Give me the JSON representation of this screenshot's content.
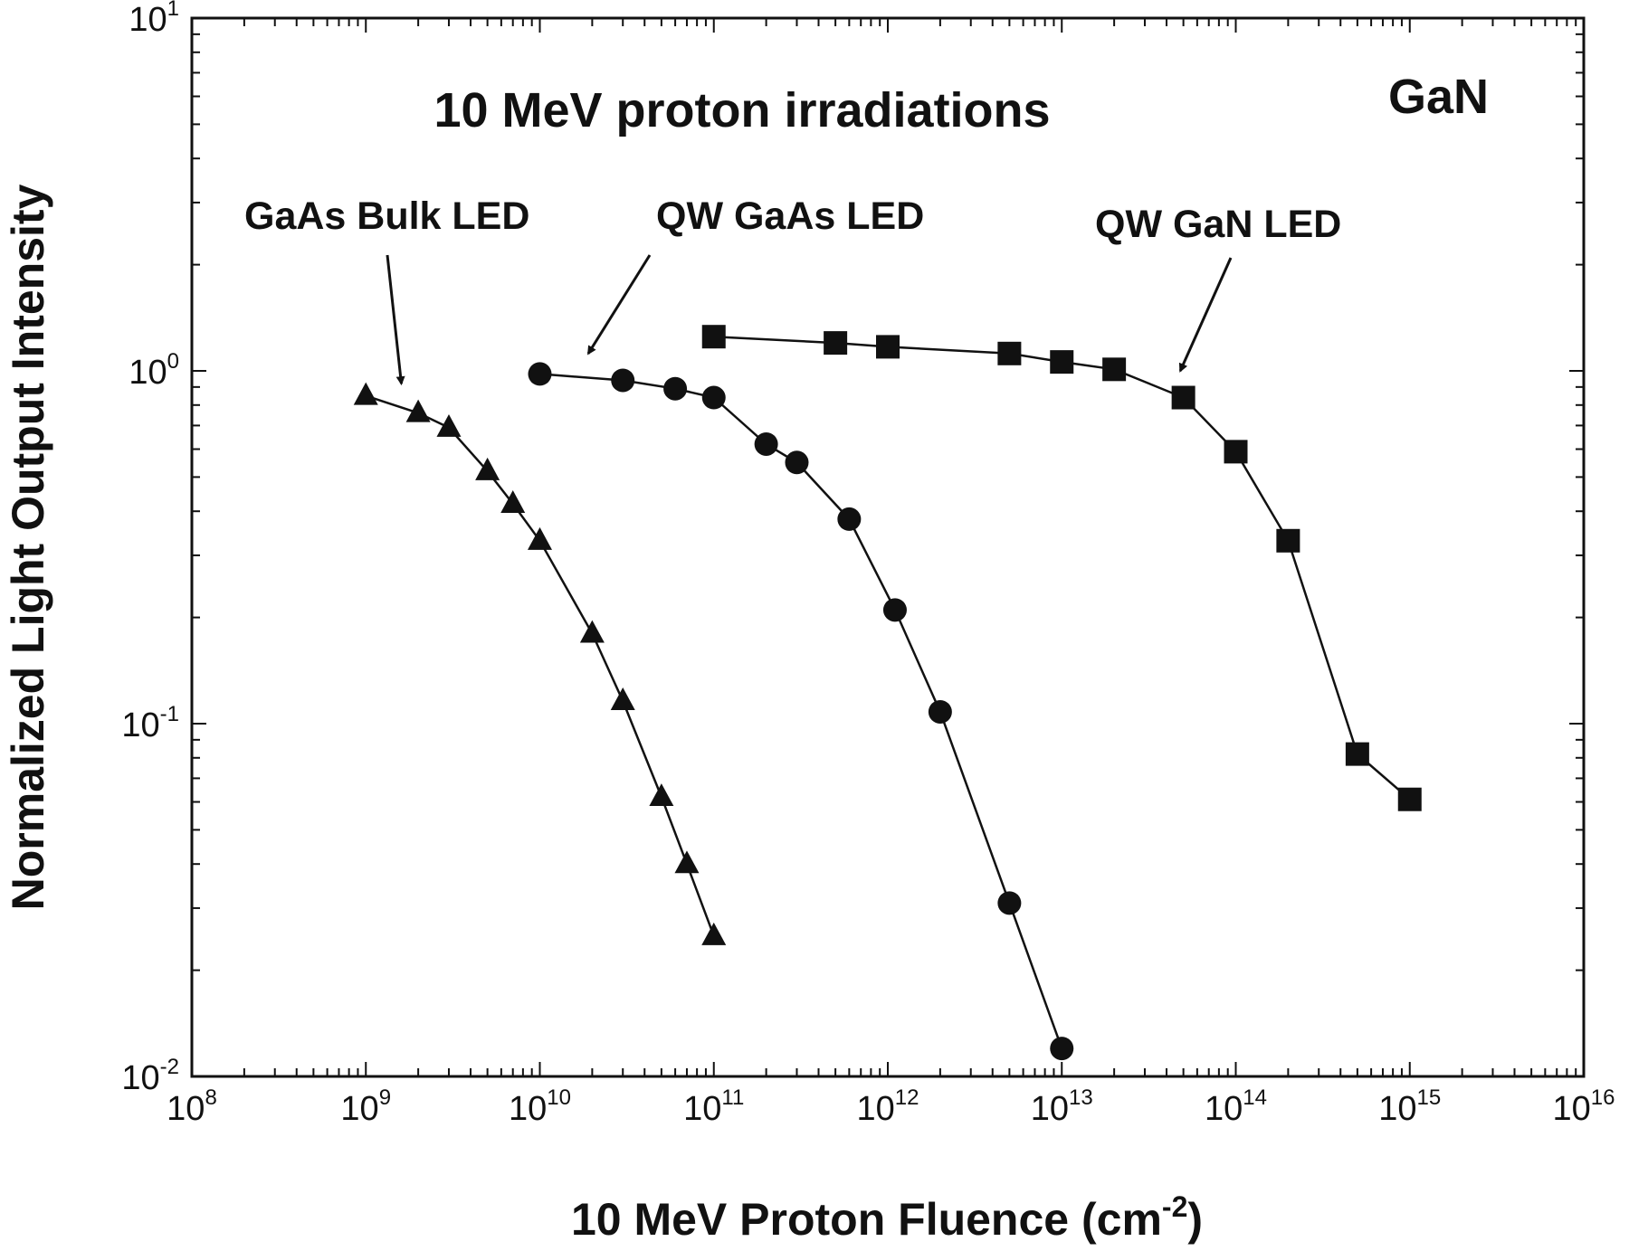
{
  "chart_data": {
    "type": "line",
    "title": "10 MeV proton irradiations",
    "corner_label": "GaN",
    "xlabel": {
      "text": "10 MeV Proton Fluence (cm",
      "sup": "-2",
      "close": ")"
    },
    "ylabel": "Normalized Light Output Intensity",
    "x_scale": "log",
    "y_scale": "log",
    "xlim": [
      100000000.0,
      1e+16
    ],
    "ylim": [
      0.01,
      10
    ],
    "x_ticks": [
      {
        "base": "10",
        "exp": "8"
      },
      {
        "base": "10",
        "exp": "9"
      },
      {
        "base": "10",
        "exp": "10"
      },
      {
        "base": "10",
        "exp": "11"
      },
      {
        "base": "10",
        "exp": "12"
      },
      {
        "base": "10",
        "exp": "13"
      },
      {
        "base": "10",
        "exp": "14"
      },
      {
        "base": "10",
        "exp": "15"
      },
      {
        "base": "10",
        "exp": "16"
      }
    ],
    "y_ticks": [
      {
        "base": "10",
        "exp": "-2"
      },
      {
        "base": "10",
        "exp": "-1"
      },
      {
        "base": "10",
        "exp": "0"
      },
      {
        "base": "10",
        "exp": "1"
      }
    ],
    "grid": false,
    "colors": {
      "line": "#111111",
      "axes": "#111111"
    },
    "series": [
      {
        "name": "GaAs Bulk LED",
        "marker": "triangle",
        "x": [
          1000000000.0,
          2000000000.0,
          3000000000.0,
          5000000000.0,
          7000000000.0,
          10000000000.0,
          20000000000.0,
          30000000000.0,
          50000000000.0,
          70000000000.0,
          100000000000.0
        ],
        "y": [
          0.85,
          0.76,
          0.69,
          0.52,
          0.42,
          0.33,
          0.18,
          0.116,
          0.062,
          0.04,
          0.025
        ]
      },
      {
        "name": "QW GaAs LED",
        "marker": "circle",
        "x": [
          10000000000.0,
          30000000000.0,
          60000000000.0,
          100000000000.0,
          200000000000.0,
          300000000000.0,
          600000000000.0,
          1100000000000.0,
          2000000000000.0,
          5000000000000.0,
          10000000000000.0
        ],
        "y": [
          0.98,
          0.94,
          0.89,
          0.84,
          0.62,
          0.55,
          0.38,
          0.21,
          0.108,
          0.031,
          0.012
        ]
      },
      {
        "name": "QW GaN LED",
        "marker": "square",
        "x": [
          100000000000.0,
          500000000000.0,
          1000000000000.0,
          5000000000000.0,
          10000000000000.0,
          20000000000000.0,
          50000000000000.0,
          100000000000000.0,
          200000000000000.0,
          500000000000000.0,
          1000000000000000.0
        ],
        "y": [
          1.25,
          1.2,
          1.17,
          1.12,
          1.06,
          1.01,
          0.84,
          0.59,
          0.33,
          0.082,
          0.061
        ]
      }
    ],
    "annotations": [
      {
        "text": "GaAs Bulk LED",
        "arrow_to": [
          1600000000.0,
          0.92
        ]
      },
      {
        "text": "QW GaAs LED",
        "arrow_to": [
          19000000000.0,
          1.12
        ]
      },
      {
        "text": "QW GaN LED",
        "arrow_to": [
          48000000000000.0,
          1.0
        ]
      }
    ]
  }
}
